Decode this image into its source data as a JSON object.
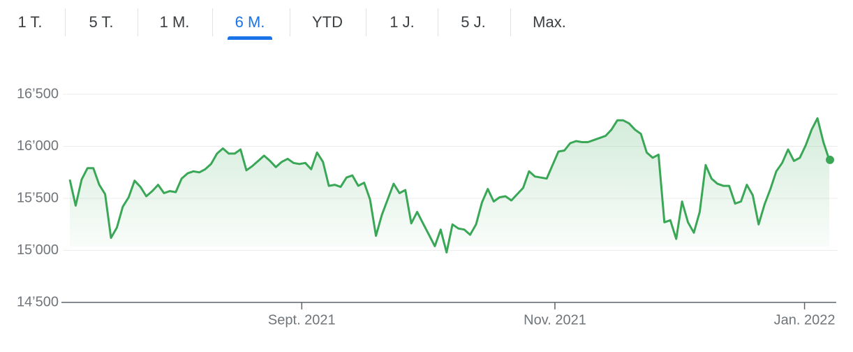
{
  "tabs": {
    "items": [
      "1 T.",
      "5 T.",
      "1 M.",
      "6 M.",
      "YTD",
      "1 J.",
      "5 J.",
      "Max."
    ],
    "selected": 3
  },
  "chart_data": {
    "type": "line",
    "color": "#3aa757",
    "area": true,
    "last_point_marker": true,
    "grid": true,
    "values": [
      15680,
      15430,
      15680,
      15790,
      15790,
      15630,
      15540,
      15120,
      15220,
      15420,
      15510,
      15670,
      15610,
      15520,
      15570,
      15630,
      15550,
      15570,
      15560,
      15690,
      15740,
      15760,
      15750,
      15780,
      15830,
      15930,
      15980,
      15930,
      15930,
      15970,
      15770,
      15810,
      15860,
      15910,
      15860,
      15800,
      15850,
      15880,
      15840,
      15830,
      15840,
      15780,
      15940,
      15850,
      15620,
      15630,
      15610,
      15700,
      15720,
      15620,
      15650,
      15490,
      15140,
      15340,
      15490,
      15640,
      15550,
      15580,
      15260,
      15370,
      15260,
      15150,
      15040,
      15200,
      14980,
      15250,
      15210,
      15200,
      15150,
      15250,
      15460,
      15590,
      15470,
      15510,
      15520,
      15480,
      15540,
      15600,
      15760,
      15710,
      15700,
      15690,
      15820,
      15950,
      15960,
      16030,
      16050,
      16040,
      16040,
      16060,
      16080,
      16100,
      16160,
      16250,
      16250,
      16220,
      16160,
      16120,
      15940,
      15890,
      15920,
      15270,
      15290,
      15110,
      15470,
      15270,
      15170,
      15370,
      15820,
      15690,
      15640,
      15620,
      15620,
      15450,
      15470,
      15630,
      15530,
      15250,
      15440,
      15590,
      15760,
      15840,
      15970,
      15860,
      15890,
      16010,
      16160,
      16270,
      16040,
      15870
    ],
    "xlim": [
      0,
      129
    ],
    "xticks": [
      {
        "value": 39.4,
        "label": "Sept. 2021"
      },
      {
        "value": 82.4,
        "label": "Nov. 2021"
      },
      {
        "value": 124.8,
        "label": "Jan. 2022"
      }
    ],
    "ylim": [
      14500,
      16500
    ],
    "yticks": [
      {
        "value": 14500,
        "label": "14’500"
      },
      {
        "value": 15000,
        "label": "15’000"
      },
      {
        "value": 15500,
        "label": "15’500"
      },
      {
        "value": 16000,
        "label": "16’000"
      },
      {
        "value": 16500,
        "label": "16’500"
      }
    ]
  }
}
